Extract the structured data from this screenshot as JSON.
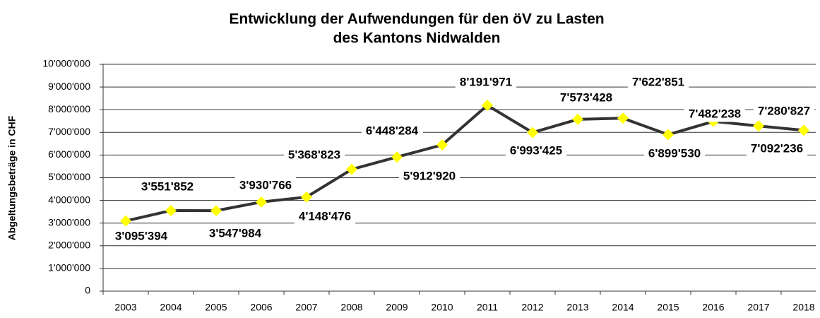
{
  "chart_data": {
    "type": "line",
    "title": [
      "Entwicklung der Aufwendungen für den öV zu Lasten",
      "des Kantons Nidwalden"
    ],
    "y_label": "Abgeltungsbeträge in CHF",
    "categories": [
      "2003",
      "2004",
      "2005",
      "2006",
      "2007",
      "2008",
      "2009",
      "2010",
      "2011",
      "2012",
      "2013",
      "2014",
      "2015",
      "2016",
      "2017",
      "2018"
    ],
    "series": [
      {
        "name": "Aufwendungen",
        "color": "#333333",
        "marker_color": "#ffff00",
        "values": [
          3095394,
          3551852,
          3547984,
          3930766,
          4148476,
          5368823,
          5912920,
          6448284,
          8191971,
          6993425,
          7573428,
          7622851,
          6899530,
          7482238,
          7280827,
          7092236
        ],
        "value_labels": [
          "3'095'394",
          "3'551'852",
          "3'547'984",
          "3'930'766",
          "4'148'476",
          "5'368'823",
          "5'912'920",
          "6'448'284",
          "8'191'971",
          "6'993'425",
          "7'573'428",
          "7'622'851",
          "6'899'530",
          "7'482'238",
          "7'280'827",
          "7'092'236"
        ]
      }
    ],
    "ylim": [
      0,
      10000000
    ],
    "yticks": [
      0,
      {
        "value": 1000000,
        "label": "1'000'000"
      },
      {
        "value": 2000000,
        "label": "2'000'000"
      },
      {
        "value": 3000000,
        "label": "3'000'000"
      },
      {
        "value": 4000000,
        "label": "4'000'000"
      },
      {
        "value": 5000000,
        "label": "5'000'000"
      },
      {
        "value": 6000000,
        "label": "6'000'000"
      },
      {
        "value": 7000000,
        "label": "7'000'000"
      },
      {
        "value": 8000000,
        "label": "8'000'000"
      },
      {
        "value": 9000000,
        "label": "9'000'000"
      },
      {
        "value": 10000000,
        "label": "10'000'000"
      }
    ],
    "grid": true
  }
}
